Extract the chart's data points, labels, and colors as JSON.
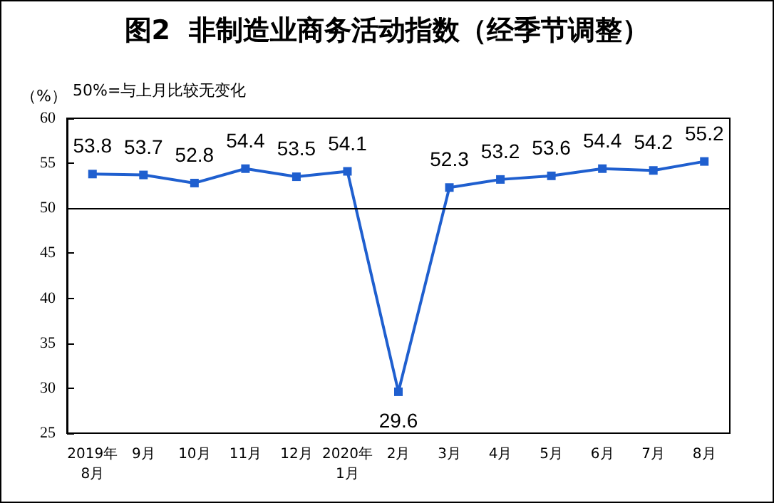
{
  "chart_data": {
    "type": "line",
    "title": "图2  非制造业商务活动指数（经季节调整）",
    "ylabel": "（%）",
    "annotations": [
      "50%=与上月比较无变化"
    ],
    "categories": [
      "2019年\n8月",
      "9月",
      "10月",
      "11月",
      "12月",
      "2020年\n1月",
      "2月",
      "3月",
      "4月",
      "5月",
      "6月",
      "7月",
      "8月"
    ],
    "series": [
      {
        "color": "#1f5fcf",
        "values": [
          53.8,
          53.7,
          52.8,
          54.4,
          53.5,
          54.1,
          29.6,
          52.3,
          53.2,
          53.6,
          54.4,
          54.2,
          55.2
        ]
      }
    ],
    "ylim": [
      25,
      60
    ],
    "yticks": [
      25,
      30,
      35,
      40,
      45,
      50,
      55,
      60
    ],
    "grid": false,
    "marker": "square",
    "data_labels": true,
    "ref_lines": [
      {
        "axis": "y",
        "value": 50,
        "color": "#000000"
      }
    ]
  }
}
